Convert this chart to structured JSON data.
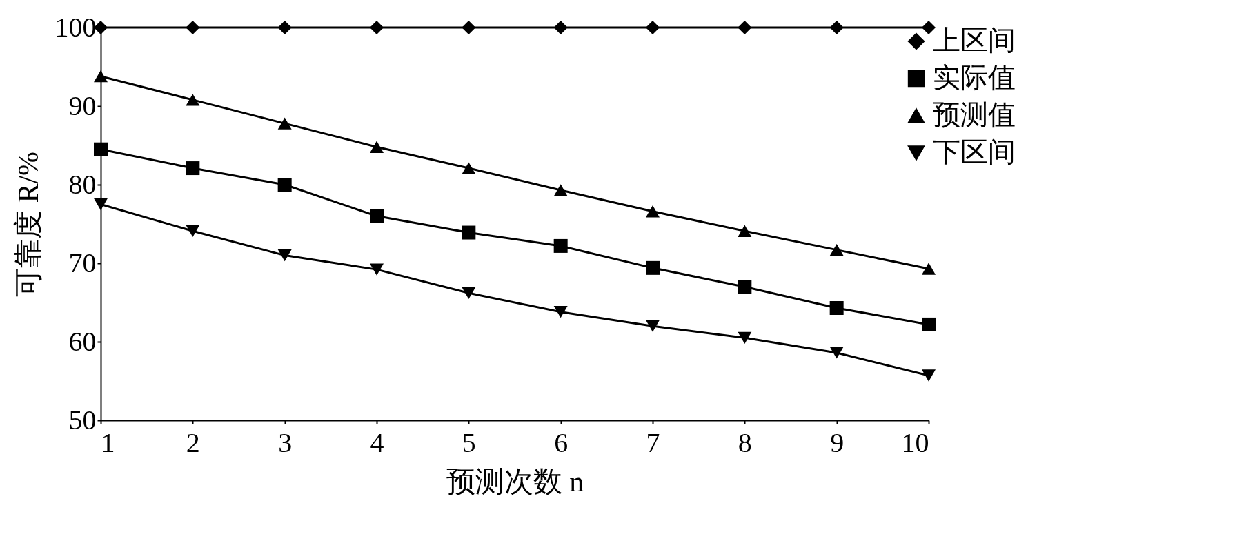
{
  "chart_data": {
    "type": "line",
    "xlabel": "预测次数 n",
    "ylabel": "可靠度 R/%",
    "x": [
      1,
      2,
      3,
      4,
      5,
      6,
      7,
      8,
      9,
      10
    ],
    "xlim": [
      1,
      10
    ],
    "xticks": [
      1,
      2,
      3,
      4,
      5,
      6,
      7,
      8,
      9,
      10
    ],
    "ylim": [
      50,
      100
    ],
    "yticks": [
      50,
      60,
      70,
      80,
      90,
      100
    ],
    "grid": false,
    "legend": "top right",
    "series": [
      {
        "name": "上区间",
        "color": "#000000",
        "marker": "diamond",
        "values": [
          100,
          100,
          100,
          100,
          100,
          100,
          100,
          100,
          100,
          100
        ]
      },
      {
        "name": "实际值",
        "color": "#000000",
        "marker": "square",
        "values": [
          84.5,
          82.1,
          80,
          76,
          73.9,
          72.2,
          69.4,
          67,
          64.3,
          62.2
        ]
      },
      {
        "name": "预测值",
        "color": "#000000",
        "marker": "triangle",
        "values": [
          93.8,
          90.8,
          87.8,
          84.8,
          82.1,
          79.3,
          76.6,
          74.1,
          71.7,
          69.3
        ]
      },
      {
        "name": "下区间",
        "color": "#000000",
        "marker": "triangle-down",
        "values": [
          77.5,
          74.1,
          71,
          69.2,
          66.2,
          63.8,
          62,
          60.5,
          58.6,
          55.7
        ]
      }
    ]
  }
}
